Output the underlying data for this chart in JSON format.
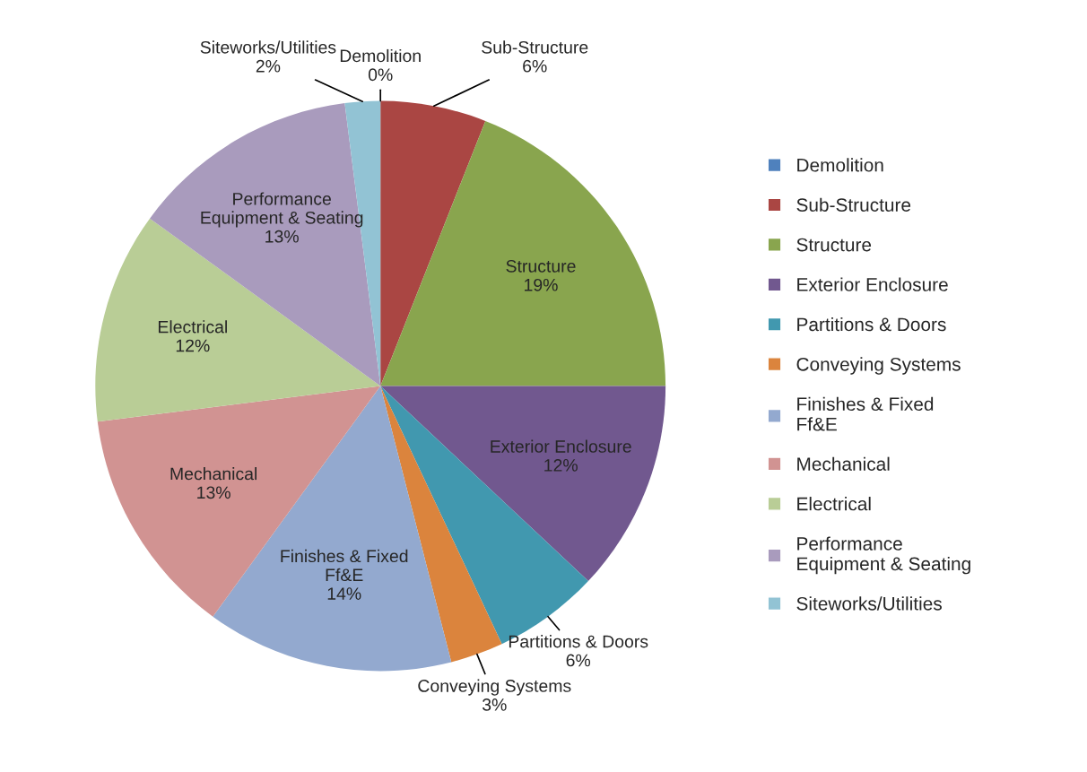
{
  "chart_data": {
    "type": "pie",
    "categories": [
      "Demolition",
      "Sub-Structure",
      "Structure",
      "Exterior Enclosure",
      "Partitions & Doors",
      "Conveying Systems",
      "Finishes & Fixed Ff&E",
      "Mechanical",
      "Electrical",
      "Performance Equipment & Seating",
      "Siteworks/Utilities"
    ],
    "values": [
      0,
      6,
      19,
      12,
      6,
      3,
      14,
      13,
      12,
      13,
      2
    ],
    "value_labels": [
      "0%",
      "6%",
      "19%",
      "12%",
      "6%",
      "3%",
      "14%",
      "13%",
      "12%",
      "13%",
      "2%"
    ],
    "colors": [
      "#4f81bd",
      "#aa4643",
      "#89a54e",
      "#71588f",
      "#4198af",
      "#db843d",
      "#93a9cf",
      "#d19392",
      "#b9cd96",
      "#a99bbd",
      "#92c3d4"
    ],
    "legend": "right"
  }
}
